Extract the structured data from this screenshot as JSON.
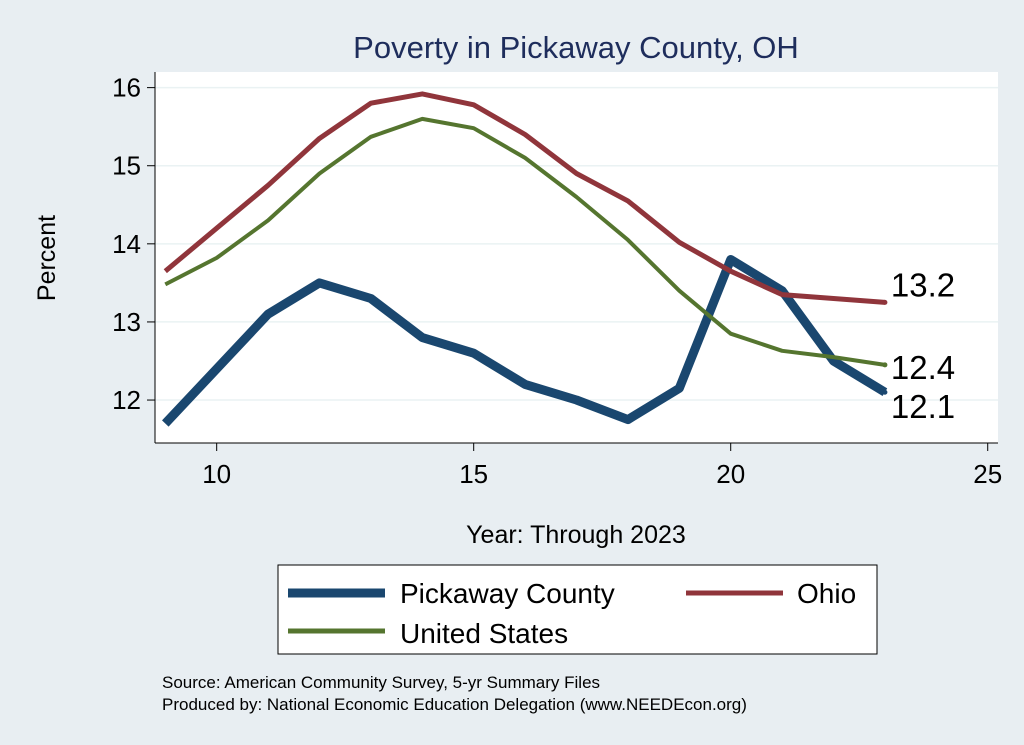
{
  "chart_data": {
    "type": "line",
    "title": "Poverty in Pickaway County, OH",
    "xlabel": "Year: Through 2023",
    "ylabel": "Percent",
    "xlim": [
      8.8,
      25.2
    ],
    "ylim": [
      11.45,
      16.2
    ],
    "xticks": [
      10,
      15,
      20,
      25
    ],
    "yticks": [
      12,
      13,
      14,
      15,
      16
    ],
    "grid": true,
    "legend_position": "bottom",
    "series": [
      {
        "name": "Pickaway County",
        "color": "#1a476f",
        "x": [
          9,
          10,
          11,
          12,
          13,
          14,
          15,
          16,
          17,
          18,
          19,
          20,
          21,
          22,
          23
        ],
        "y": [
          11.7,
          12.4,
          13.1,
          13.5,
          13.3,
          12.8,
          12.6,
          12.2,
          12.0,
          11.75,
          12.15,
          13.8,
          13.4,
          12.5,
          12.1
        ],
        "end_label": "12.1"
      },
      {
        "name": "Ohio",
        "color": "#90353b",
        "x": [
          9,
          10,
          11,
          12,
          13,
          14,
          15,
          16,
          17,
          18,
          19,
          20,
          21,
          22,
          23
        ],
        "y": [
          13.65,
          14.2,
          14.75,
          15.35,
          15.8,
          15.92,
          15.78,
          15.4,
          14.9,
          14.55,
          14.02,
          13.65,
          13.35,
          13.3,
          13.25
        ],
        "end_label": "13.2"
      },
      {
        "name": "United States",
        "color": "#55752f",
        "x": [
          9,
          10,
          11,
          12,
          13,
          14,
          15,
          16,
          17,
          18,
          19,
          20,
          21,
          22,
          23
        ],
        "y": [
          13.48,
          13.82,
          14.3,
          14.9,
          15.37,
          15.6,
          15.48,
          15.1,
          14.6,
          14.05,
          13.4,
          12.85,
          12.63,
          12.55,
          12.45
        ],
        "end_label": "12.4"
      }
    ],
    "source_note": "Source: American Community Survey, 5-yr Summary Files",
    "producer_note": "Produced by: National Economic Education Delegation (www.NEEDEcon.org)"
  }
}
